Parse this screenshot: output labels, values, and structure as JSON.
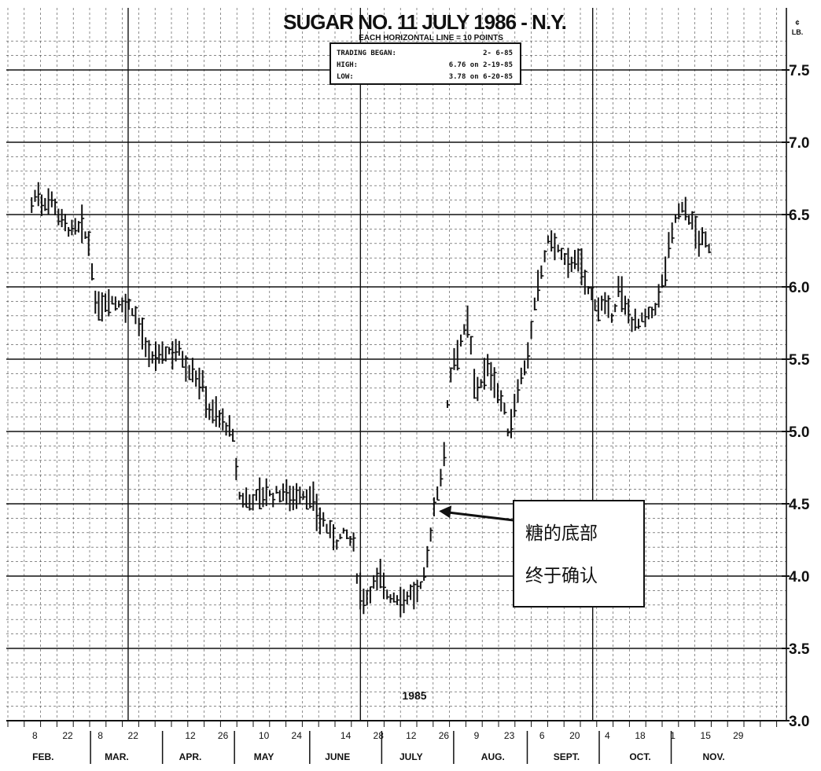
{
  "chart_data": {
    "type": "bar",
    "subtype": "daily-high-low-close",
    "title": "SUGAR NO. 11  JULY 1986 - N.Y.",
    "subtitle": "EACH HORIZONTAL LINE = 10 POINTS",
    "y_unit_top": "¢",
    "y_unit_bottom": "LB.",
    "ylim": [
      3.0,
      7.75
    ],
    "yticks": [
      "7.5",
      "7.0",
      "6.5",
      "6.0",
      "5.5",
      "5.0",
      "4.5",
      "4.0",
      "3.5",
      "3.0"
    ],
    "ytick_values": [
      7.5,
      7.0,
      6.5,
      6.0,
      5.5,
      5.0,
      4.5,
      4.0,
      3.5,
      3.0
    ],
    "grid": true,
    "year_label": "1985",
    "x_day_ticks": [
      {
        "label": "8",
        "t": 0.5
      },
      {
        "label": "22",
        "t": 2.5
      },
      {
        "label": "8",
        "t": 4.5
      },
      {
        "label": "22",
        "t": 6.5
      },
      {
        "label": "12",
        "t": 10.0
      },
      {
        "label": "26",
        "t": 12.0
      },
      {
        "label": "10",
        "t": 14.5
      },
      {
        "label": "24",
        "t": 16.5
      },
      {
        "label": "14",
        "t": 19.5
      },
      {
        "label": "28",
        "t": 21.5
      },
      {
        "label": "12",
        "t": 23.5
      },
      {
        "label": "26",
        "t": 25.5
      },
      {
        "label": "9",
        "t": 27.5
      },
      {
        "label": "23",
        "t": 29.5
      },
      {
        "label": "6",
        "t": 31.5
      },
      {
        "label": "20",
        "t": 33.5
      },
      {
        "label": "4",
        "t": 35.5
      },
      {
        "label": "18",
        "t": 37.5
      },
      {
        "label": "1",
        "t": 39.5
      },
      {
        "label": "15",
        "t": 41.5
      },
      {
        "label": "29",
        "t": 43.5
      }
    ],
    "x_months": [
      {
        "label": "FEB.",
        "t": 1.0
      },
      {
        "label": "MAR.",
        "t": 5.5
      },
      {
        "label": "APR.",
        "t": 10.0
      },
      {
        "label": "MAY",
        "t": 14.5
      },
      {
        "label": "JUNE",
        "t": 19.0
      },
      {
        "label": "JULY",
        "t": 23.5
      },
      {
        "label": "AUG.",
        "t": 28.5
      },
      {
        "label": "SEPT.",
        "t": 33.0
      },
      {
        "label": "OCT.",
        "t": 37.5
      },
      {
        "label": "NOV.",
        "t": 42.0
      }
    ],
    "month_boundaries": [
      3.9,
      8.3,
      12.7,
      17.3,
      21.7,
      26.1,
      30.6,
      35.0,
      39.4
    ],
    "info_box": {
      "rows": [
        {
          "label": "TRADING BEGAN:",
          "value": "2- 6-85"
        },
        {
          "label": "HIGH:",
          "value": "6.76 on  2-19-85"
        },
        {
          "label": "LOW:",
          "value": "3.78 on  6-20-85"
        }
      ]
    },
    "annotation": {
      "lines": [
        "糖的底部",
        "终于确认"
      ],
      "arrow_target_t": 25.2,
      "arrow_target_price": 4.45
    },
    "price_path": [
      [
        0.3,
        6.57
      ],
      [
        0.6,
        6.65
      ],
      [
        1.0,
        6.58
      ],
      [
        1.5,
        6.62
      ],
      [
        2.2,
        6.45
      ],
      [
        2.8,
        6.38
      ],
      [
        3.3,
        6.42
      ],
      [
        3.6,
        6.35
      ],
      [
        3.9,
        6.25
      ],
      [
        4.2,
        5.85
      ],
      [
        4.6,
        5.88
      ],
      [
        5.0,
        5.92
      ],
      [
        5.5,
        5.9
      ],
      [
        6.0,
        5.88
      ],
      [
        6.5,
        5.85
      ],
      [
        7.0,
        5.7
      ],
      [
        7.4,
        5.5
      ],
      [
        8.0,
        5.52
      ],
      [
        8.6,
        5.55
      ],
      [
        9.2,
        5.58
      ],
      [
        9.8,
        5.45
      ],
      [
        10.3,
        5.4
      ],
      [
        10.8,
        5.3
      ],
      [
        11.2,
        5.15
      ],
      [
        11.7,
        5.1
      ],
      [
        12.2,
        5.05
      ],
      [
        12.6,
        4.95
      ],
      [
        13.0,
        4.55
      ],
      [
        13.5,
        4.52
      ],
      [
        14.0,
        4.55
      ],
      [
        14.5,
        4.58
      ],
      [
        15.0,
        4.55
      ],
      [
        15.5,
        4.58
      ],
      [
        16.0,
        4.57
      ],
      [
        16.5,
        4.55
      ],
      [
        17.0,
        4.58
      ],
      [
        17.5,
        4.5
      ],
      [
        18.0,
        4.4
      ],
      [
        18.5,
        4.3
      ],
      [
        19.0,
        4.25
      ],
      [
        19.5,
        4.3
      ],
      [
        20.0,
        4.2
      ],
      [
        20.3,
        3.9
      ],
      [
        20.7,
        3.85
      ],
      [
        21.2,
        3.95
      ],
      [
        21.6,
        4.0
      ],
      [
        22.0,
        3.88
      ],
      [
        22.5,
        3.85
      ],
      [
        23.0,
        3.85
      ],
      [
        23.5,
        3.88
      ],
      [
        24.0,
        3.88
      ],
      [
        24.4,
        4.05
      ],
      [
        24.8,
        4.4
      ],
      [
        25.2,
        4.65
      ],
      [
        25.5,
        4.8
      ],
      [
        25.8,
        5.35
      ],
      [
        26.2,
        5.55
      ],
      [
        26.6,
        5.65
      ],
      [
        27.0,
        5.75
      ],
      [
        27.4,
        5.3
      ],
      [
        27.8,
        5.35
      ],
      [
        28.3,
        5.45
      ],
      [
        28.7,
        5.3
      ],
      [
        29.1,
        5.2
      ],
      [
        29.5,
        4.95
      ],
      [
        29.9,
        5.25
      ],
      [
        30.3,
        5.4
      ],
      [
        30.7,
        5.55
      ],
      [
        31.1,
        5.9
      ],
      [
        31.6,
        6.2
      ],
      [
        32.0,
        6.35
      ],
      [
        32.5,
        6.25
      ],
      [
        33.0,
        6.15
      ],
      [
        33.5,
        6.2
      ],
      [
        34.0,
        6.1
      ],
      [
        34.4,
        5.95
      ],
      [
        34.8,
        5.9
      ],
      [
        35.3,
        5.85
      ],
      [
        35.8,
        5.8
      ],
      [
        36.2,
        6.0
      ],
      [
        36.6,
        5.85
      ],
      [
        37.0,
        5.78
      ],
      [
        37.4,
        5.75
      ],
      [
        37.9,
        5.78
      ],
      [
        38.4,
        5.85
      ],
      [
        38.9,
        6.05
      ],
      [
        39.3,
        6.3
      ],
      [
        39.7,
        6.5
      ],
      [
        40.2,
        6.55
      ],
      [
        40.6,
        6.45
      ],
      [
        41.0,
        6.35
      ],
      [
        41.5,
        6.3
      ],
      [
        41.9,
        6.25
      ]
    ]
  }
}
